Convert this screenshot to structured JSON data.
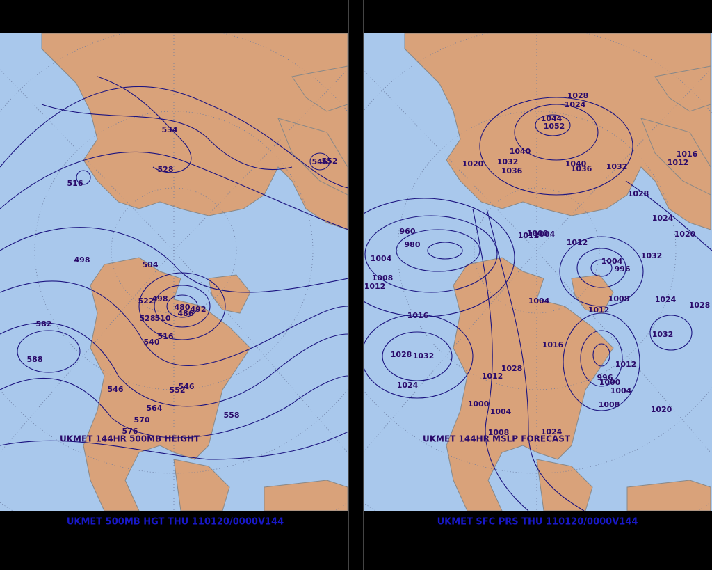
{
  "left": {
    "inner_title": "UKMET 144HR 500MB HEIGHT",
    "caption": "UKMET 500MB HGT THU 110120/0000V144",
    "contour_labels": [
      534,
      528,
      546,
      552,
      516,
      498,
      504,
      522,
      498,
      480,
      486,
      492,
      528,
      510,
      540,
      516,
      582,
      588,
      546,
      552,
      546,
      564,
      570,
      576,
      558
    ]
  },
  "right": {
    "inner_title": "UKMET 144HR MSLP FORECAST",
    "caption": "UKMET SFC PRS THU 110120/0000V144",
    "contour_labels": [
      1028,
      1024,
      1044,
      1052,
      1040,
      1020,
      1032,
      1036,
      1040,
      1036,
      1032,
      1016,
      1012,
      1028,
      1024,
      1020,
      960,
      980,
      1012,
      1008,
      1004,
      1000,
      1004,
      1012,
      1012,
      1032,
      1004,
      996,
      1004,
      1008,
      1012,
      1024,
      1028,
      1032,
      1016,
      1028,
      1032,
      1024,
      1016,
      1012,
      1028,
      1012,
      996,
      1000,
      1004,
      1008,
      1000,
      1004,
      1008,
      1024,
      1020
    ]
  }
}
